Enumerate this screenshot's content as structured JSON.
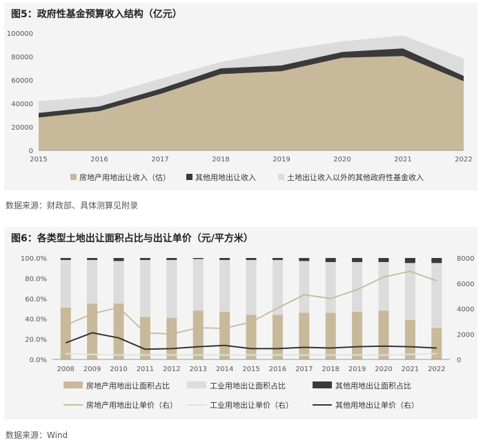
{
  "chart_data": [
    {
      "type": "area",
      "title": "图5：政府性基金预算收入结构（亿元）",
      "x": [
        "2015",
        "2016",
        "2017",
        "2018",
        "2019",
        "2020",
        "2021",
        "2022"
      ],
      "ylim": [
        0,
        100000
      ],
      "yticks": [
        "0",
        "20000",
        "40000",
        "60000",
        "80000",
        "100000"
      ],
      "stacked": true,
      "series": [
        {
          "name": "房地产用地出让收入（估）",
          "color": "#c8b99a",
          "values": [
            28000,
            33500,
            48000,
            65000,
            67500,
            79000,
            80500,
            59000
          ]
        },
        {
          "name": "其他用地出让收入",
          "color": "#3a3a3a",
          "values": [
            4000,
            4000,
            4500,
            5000,
            5000,
            5000,
            6500,
            4500
          ]
        },
        {
          "name": "土地出让收入以外的其他政府性基金收入",
          "color": "#dcdcdc",
          "values": [
            10000,
            8500,
            8500,
            5500,
            12500,
            9000,
            11000,
            15000
          ]
        }
      ],
      "legend": "bottom",
      "grid": false
    },
    {
      "type": "bar",
      "title": "图6：各类型土地出让面积占比与出让单价（元/平方米）",
      "x": [
        "2008",
        "2009",
        "2010",
        "2011",
        "2012",
        "2013",
        "2014",
        "2015",
        "2016",
        "2017",
        "2018",
        "2019",
        "2020",
        "2021",
        "2022"
      ],
      "ylim": [
        0,
        100
      ],
      "y2lim": [
        0,
        8000
      ],
      "yticks": [
        "0.0%",
        "20.0%",
        "40.0%",
        "60.0%",
        "80.0%",
        "100.0%"
      ],
      "y2ticks": [
        "0",
        "2000",
        "4000",
        "6000",
        "8000"
      ],
      "stacked": true,
      "series": [
        {
          "name": "房地产用地出让面积占比",
          "kind": "bar",
          "color": "#c8b99a",
          "values": [
            51,
            55,
            55,
            42,
            41,
            48,
            47,
            44,
            44,
            46,
            46,
            47,
            48,
            39,
            31
          ]
        },
        {
          "name": "工业用地出让面积占比",
          "kind": "bar",
          "color": "#dcdcdc",
          "values": [
            47,
            43,
            42,
            56,
            57,
            51,
            51,
            54,
            54,
            51,
            50,
            49,
            48,
            56,
            64
          ]
        },
        {
          "name": "其他用地出让面积占比",
          "kind": "bar",
          "color": "#3a3a3a",
          "values": [
            2,
            2,
            3,
            2,
            2,
            1,
            2,
            2,
            2,
            3,
            4,
            4,
            4,
            5,
            5
          ]
        },
        {
          "name": "房地产用地出让单价（右）",
          "kind": "line",
          "axis": "right",
          "color": "#c8b99a",
          "values": [
            2700,
            3600,
            4100,
            2100,
            2000,
            2500,
            2450,
            2950,
            4050,
            5100,
            4800,
            5500,
            6500,
            6950,
            6200
          ]
        },
        {
          "name": "工业用地出让单价（右）",
          "kind": "line",
          "axis": "right",
          "color": "#e2e2e2",
          "values": [
            450,
            400,
            350,
            350,
            350,
            350,
            350,
            350,
            350,
            350,
            350,
            350,
            350,
            400,
            450
          ]
        },
        {
          "name": "其他用地出让单价（右）",
          "kind": "line",
          "axis": "right",
          "color": "#333333",
          "values": [
            1300,
            2100,
            1700,
            800,
            850,
            1000,
            1100,
            850,
            850,
            950,
            900,
            1000,
            1050,
            1000,
            900
          ]
        }
      ],
      "legend": "bottom",
      "grid": false
    }
  ],
  "sources": {
    "s1": "数据来源：财政部、具体测算见附录",
    "s2": "数据来源：Wind"
  }
}
